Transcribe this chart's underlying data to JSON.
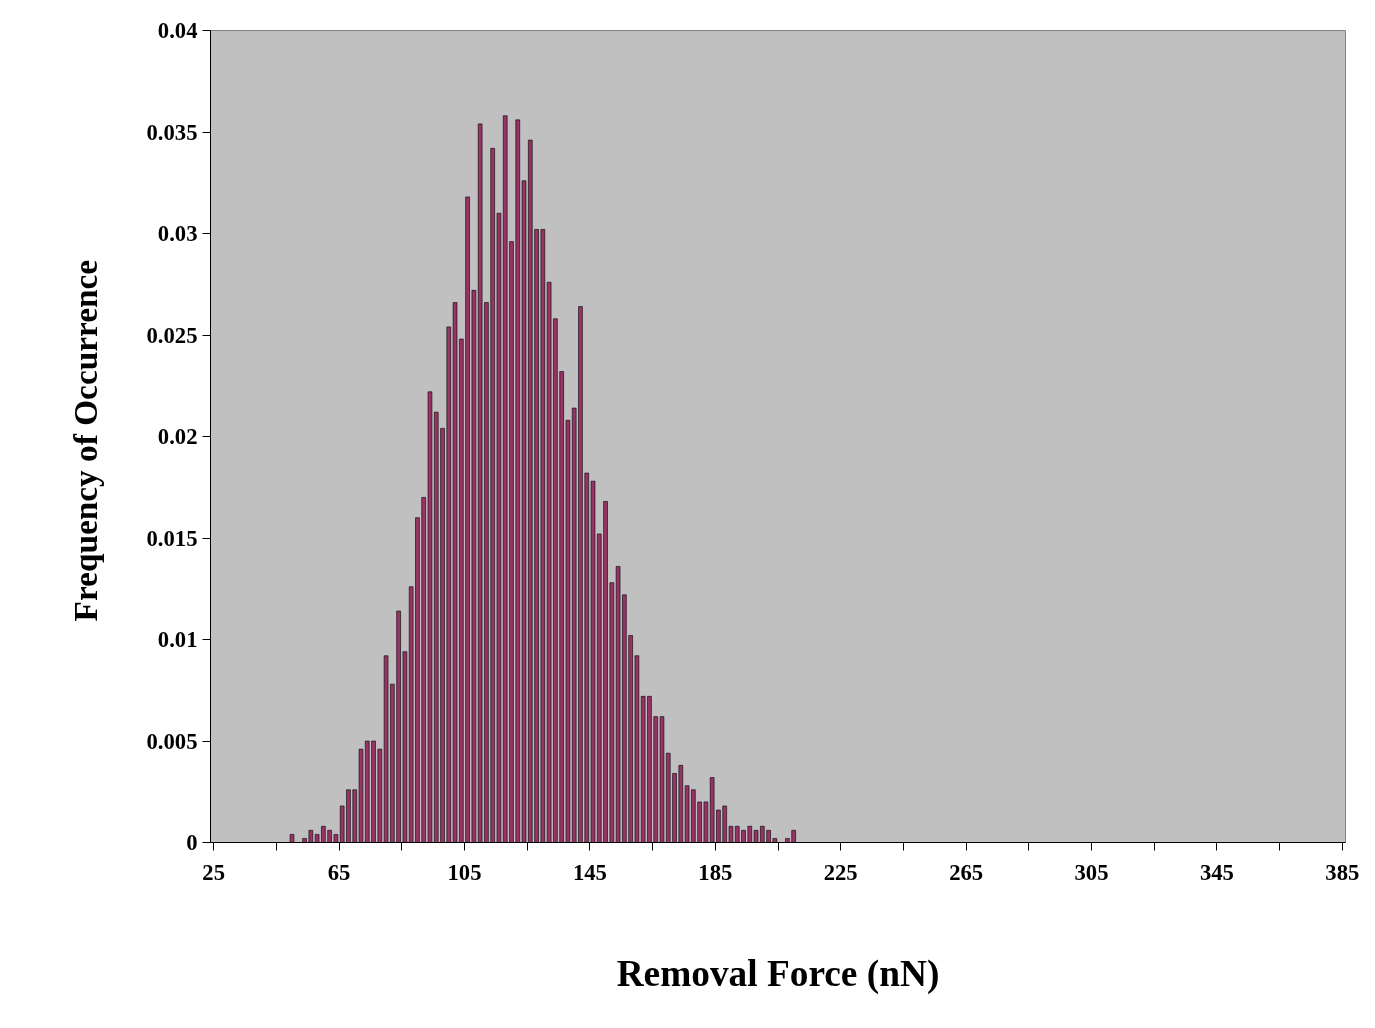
{
  "chart_data": {
    "type": "histogram",
    "xlabel": "Removal Force (nN)",
    "ylabel": "Frequency  of Occurrence",
    "bins": [
      49,
      51,
      53,
      55,
      57,
      59,
      61,
      63,
      65,
      67,
      69,
      71,
      73,
      75,
      77,
      79,
      81,
      83,
      85,
      87,
      89,
      91,
      93,
      95,
      97,
      99,
      101,
      103,
      105,
      107,
      109,
      111,
      113,
      115,
      117,
      119,
      121,
      123,
      125,
      127,
      129,
      131,
      133,
      135,
      137,
      139,
      141,
      143,
      145,
      147,
      149,
      151,
      153,
      155,
      157,
      159,
      161,
      163,
      165,
      167,
      169,
      171,
      173,
      175,
      177,
      179,
      181,
      183,
      185,
      187,
      189,
      191,
      193,
      195,
      197,
      199,
      201,
      203,
      205,
      207,
      209,
      211
    ],
    "values": [
      0.0004,
      0,
      0.0002,
      0.0006,
      0.0004,
      0.0008,
      0.0006,
      0.0004,
      0.0018,
      0.0026,
      0.0026,
      0.0046,
      0.005,
      0.005,
      0.0046,
      0.0092,
      0.0078,
      0.0114,
      0.0094,
      0.0126,
      0.016,
      0.017,
      0.0222,
      0.0212,
      0.0204,
      0.0254,
      0.0266,
      0.0248,
      0.0318,
      0.0272,
      0.0354,
      0.0266,
      0.0342,
      0.031,
      0.0358,
      0.0296,
      0.0356,
      0.0326,
      0.0346,
      0.0302,
      0.0302,
      0.0276,
      0.0258,
      0.0232,
      0.0208,
      0.0214,
      0.0264,
      0.0182,
      0.0178,
      0.0152,
      0.0168,
      0.0128,
      0.0136,
      0.0122,
      0.0102,
      0.0092,
      0.0072,
      0.0072,
      0.0062,
      0.0062,
      0.0044,
      0.0034,
      0.0038,
      0.0028,
      0.0026,
      0.002,
      0.002,
      0.0032,
      0.0016,
      0.0018,
      0.0008,
      0.0008,
      0.0006,
      0.0008,
      0.0006,
      0.0008,
      0.0006,
      0.0002,
      0,
      0.0002,
      0.0006
    ],
    "color": "#993366",
    "xlim": [
      24,
      386
    ],
    "xticks": [
      25,
      {
        "value": 45,
        "label": null
      },
      65,
      {
        "value": 85,
        "label": null
      },
      105,
      {
        "value": 125,
        "label": null
      },
      145,
      {
        "value": 165,
        "label": null
      },
      185,
      {
        "value": 205,
        "label": null
      },
      225,
      {
        "value": 245,
        "label": null
      },
      265,
      {
        "value": 285,
        "label": null
      },
      305,
      {
        "value": 325,
        "label": null
      },
      345,
      {
        "value": 365,
        "label": null
      },
      385
    ],
    "ylim": [
      0,
      0.04
    ],
    "yticks": [
      0,
      0.005,
      0.01,
      0.015,
      0.02,
      0.025,
      0.03,
      0.035,
      0.04
    ],
    "grid": false
  }
}
